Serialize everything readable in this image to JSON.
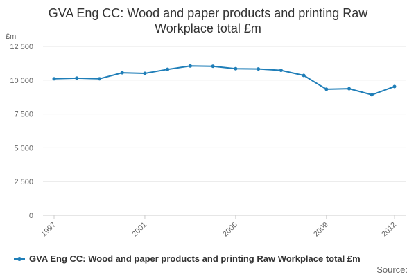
{
  "chart_data": {
    "type": "line",
    "title_line1": "GVA Eng CC: Wood and paper products and printing Raw",
    "title_line2": "Workplace total £m",
    "ylabel": "£m",
    "xlabel": "",
    "ylim": [
      0,
      12500
    ],
    "y_ticks": [
      "0",
      "2 500",
      "5 000",
      "7 500",
      "10 000",
      "12 500"
    ],
    "y_tick_values": [
      0,
      2500,
      5000,
      7500,
      10000,
      12500
    ],
    "x_range": [
      1997,
      2012
    ],
    "x_tick_labels": [
      "1997",
      "2001",
      "2005",
      "2009",
      "2012"
    ],
    "x_tick_values": [
      1997,
      2001,
      2005,
      2009,
      2012
    ],
    "grid": true,
    "legend_position": "bottom",
    "series": [
      {
        "name": "GVA Eng CC: Wood and paper products and printing Raw Workplace total £m",
        "color": "#1f7eb8",
        "x": [
          1997,
          1998,
          1999,
          2000,
          2001,
          2002,
          2003,
          2004,
          2005,
          2006,
          2007,
          2008,
          2009,
          2010,
          2011,
          2012
        ],
        "values": [
          10100,
          10150,
          10100,
          10550,
          10500,
          10800,
          11050,
          11030,
          10850,
          10830,
          10730,
          10350,
          9330,
          9370,
          8920,
          9530
        ]
      }
    ]
  },
  "legend": {
    "label": "GVA Eng CC: Wood and paper products and printing Raw Workplace total £m"
  },
  "footer": {
    "source_label": "Source:"
  }
}
